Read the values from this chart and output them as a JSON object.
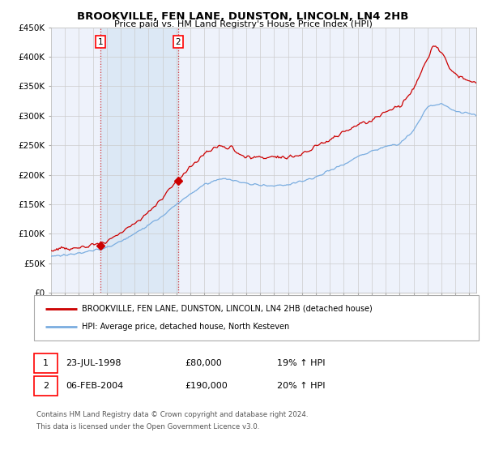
{
  "title": "BROOKVILLE, FEN LANE, DUNSTON, LINCOLN, LN4 2HB",
  "subtitle": "Price paid vs. HM Land Registry's House Price Index (HPI)",
  "legend_line1": "BROOKVILLE, FEN LANE, DUNSTON, LINCOLN, LN4 2HB (detached house)",
  "legend_line2": "HPI: Average price, detached house, North Kesteven",
  "sale1_date": "23-JUL-1998",
  "sale1_price": "£80,000",
  "sale1_hpi": "19% ↑ HPI",
  "sale1_year": 1998.55,
  "sale1_value": 80000,
  "sale2_date": "06-FEB-2004",
  "sale2_price": "£190,000",
  "sale2_hpi": "20% ↑ HPI",
  "sale2_year": 2004.1,
  "sale2_value": 190000,
  "footer1": "Contains HM Land Registry data © Crown copyright and database right 2024.",
  "footer2": "This data is licensed under the Open Government Licence v3.0.",
  "ylim": [
    0,
    450000
  ],
  "xlim_start": 1995.0,
  "xlim_end": 2025.5,
  "red_color": "#cc0000",
  "blue_color": "#7aade0",
  "shade_color": "#dce8f5",
  "background_color": "#ffffff",
  "grid_color": "#cccccc",
  "plot_bg_color": "#eef2fb"
}
